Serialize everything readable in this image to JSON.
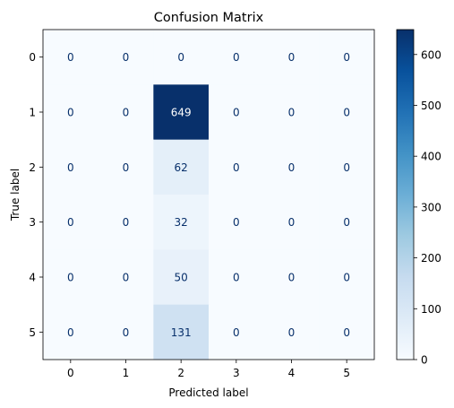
{
  "chart_data": {
    "type": "heatmap",
    "title": "Confusion Matrix",
    "xlabel": "Predicted label",
    "ylabel": "True label",
    "x_categories": [
      "0",
      "1",
      "2",
      "3",
      "4",
      "5"
    ],
    "y_categories": [
      "0",
      "1",
      "2",
      "3",
      "4",
      "5"
    ],
    "values": [
      [
        0,
        0,
        0,
        0,
        0,
        0
      ],
      [
        0,
        0,
        649,
        0,
        0,
        0
      ],
      [
        0,
        0,
        62,
        0,
        0,
        0
      ],
      [
        0,
        0,
        32,
        0,
        0,
        0
      ],
      [
        0,
        0,
        50,
        0,
        0,
        0
      ],
      [
        0,
        0,
        131,
        0,
        0,
        0
      ]
    ],
    "colormap": "Blues",
    "colorbar": {
      "range": [
        0,
        649
      ],
      "ticks": [
        0,
        100,
        200,
        300,
        400,
        500,
        600
      ]
    },
    "text_colors": {
      "light_cell": "#08306b",
      "dark_cell": "#ffffff"
    }
  }
}
